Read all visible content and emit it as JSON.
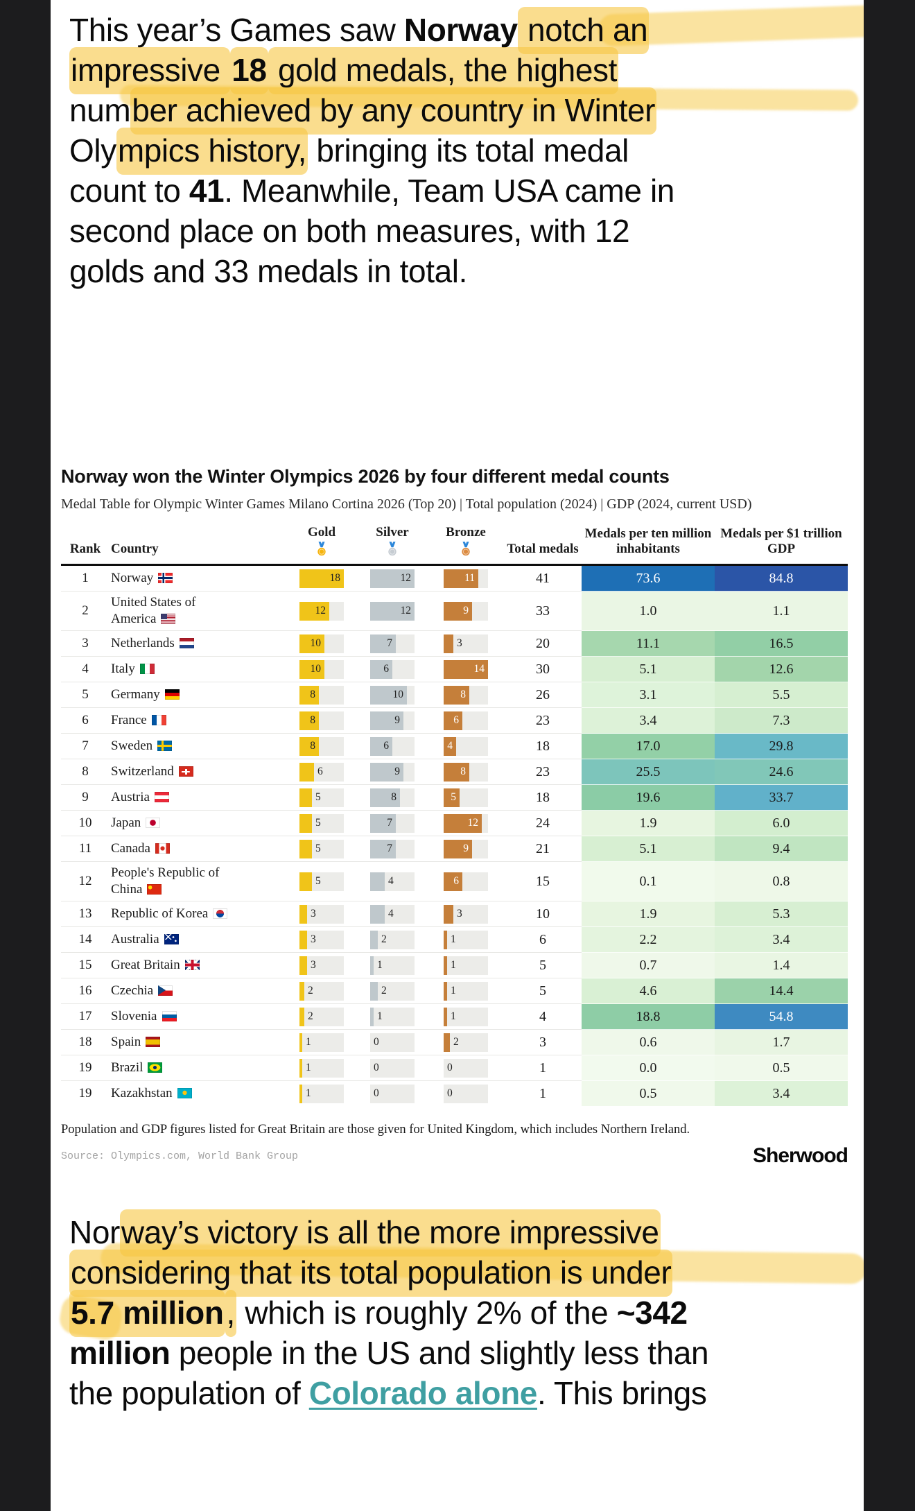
{
  "article": {
    "top_paragraph": {
      "lines": [
        [
          {
            "t": "This year’s Games saw "
          },
          {
            "t": "Norway",
            "b": true
          },
          {
            "t": " notch an",
            "h": true
          }
        ],
        [
          {
            "t": "impressive ",
            "h": true
          },
          {
            "t": "18",
            "b": true,
            "h": true
          },
          {
            "t": " gold medals, the highest",
            "h": true
          }
        ],
        [
          {
            "t": "num"
          },
          {
            "t": "ber achieved by any country in Winter",
            "h": true
          }
        ],
        [
          {
            "t": "Oly"
          },
          {
            "t": "mpics history,",
            "h": true
          },
          {
            "t": " bringing its total medal"
          }
        ],
        [
          {
            "t": "count to "
          },
          {
            "t": "41",
            "b": true
          },
          {
            "t": ". Meanwhile, Team USA came in"
          }
        ],
        [
          {
            "t": "second place on both measures, with 12"
          }
        ],
        [
          {
            "t": "golds and 33 medals in total."
          }
        ]
      ]
    },
    "bottom_paragraph": {
      "lines": [
        [
          {
            "t": "Nor"
          },
          {
            "t": "way’s victory is all the more impressive",
            "h": true
          }
        ],
        [
          {
            "t": "considering that its total population is under",
            "h": true
          }
        ],
        [
          {
            "t": "5.7 million",
            "b": true,
            "h": true
          },
          {
            "t": ",",
            "h": true
          },
          {
            "t": " which is roughly 2% of the "
          },
          {
            "t": "~342",
            "b": true
          }
        ],
        [
          {
            "t": "million",
            "b": true
          },
          {
            "t": " people in the US and slightly less than"
          }
        ],
        [
          {
            "t": "the population of "
          },
          {
            "t": "Colorado alone",
            "link": true
          },
          {
            "t": ". This brings"
          }
        ]
      ]
    },
    "highlight_color": "#f6c742",
    "link_color": "#3f9fa2"
  },
  "chart": {
    "title": "Norway won the Winter Olympics 2026 by four different medal counts",
    "subtitle": "Medal Table for Olympic Winter Games Milano Cortina 2026 (Top 20) | Total population (2024) | GDP (2024, current USD)",
    "headers": {
      "rank": "Rank",
      "country": "Country",
      "gold": "Gold",
      "silver": "Silver",
      "bronze": "Bronze",
      "total": "Total medals",
      "per_pop": "Medals per ten million inhabitants",
      "per_gdp": "Medals per $1 trillion GDP"
    },
    "medal_colors": {
      "gold": "#f6b40e",
      "silver": "#c6ccd2",
      "bronze": "#dc8a3f"
    },
    "bar_colors": {
      "gold": "#f0c419",
      "silver": "#bfc8cc",
      "bronze": "#c57f3a",
      "track": "#ecece9"
    },
    "footnote": "Population and GDP figures listed for Great Britain are those given for United Kingdom, which includes Northern Ireland.",
    "source": "Source: Olympics.com, World Bank Group",
    "logo": "Sherwood"
  },
  "chart_data": {
    "type": "table",
    "columns": [
      "Rank",
      "Country",
      "Gold",
      "Silver",
      "Bronze",
      "Total medals",
      "Medals per ten million inhabitants",
      "Medals per $1 trillion GDP"
    ],
    "maxima": {
      "gold": 18,
      "silver": 12,
      "bronze": 14
    },
    "rows": [
      {
        "rank": "1",
        "country": "Norway",
        "flag": "no",
        "gold": 18,
        "silver": 12,
        "bronze": 11,
        "total": 41,
        "per_pop": "73.6",
        "per_gdp": "84.8",
        "pop_bg": "#1e6fb5",
        "pop_fg": "#ffffff",
        "gdp_bg": "#2b55a7",
        "gdp_fg": "#ffffff"
      },
      {
        "rank": "2",
        "country": "United States of America",
        "flag": "us",
        "gold": 12,
        "silver": 12,
        "bronze": 9,
        "total": 33,
        "per_pop": "1.0",
        "per_gdp": "1.1",
        "pop_bg": "#eaf6e4",
        "gdp_bg": "#eaf6e4"
      },
      {
        "rank": "3",
        "country": "Netherlands",
        "flag": "nl",
        "gold": 10,
        "silver": 7,
        "bronze": 3,
        "total": 20,
        "per_pop": "11.1",
        "per_gdp": "16.5",
        "pop_bg": "#a6d7ae",
        "gdp_bg": "#92cfa6"
      },
      {
        "rank": "4",
        "country": "Italy",
        "flag": "it",
        "gold": 10,
        "silver": 6,
        "bronze": 14,
        "total": 30,
        "per_pop": "5.1",
        "per_gdp": "12.6",
        "pop_bg": "#d7efd2",
        "gdp_bg": "#a3d5ab"
      },
      {
        "rank": "5",
        "country": "Germany",
        "flag": "de",
        "gold": 8,
        "silver": 10,
        "bronze": 8,
        "total": 26,
        "per_pop": "3.1",
        "per_gdp": "5.5",
        "pop_bg": "#def3da",
        "gdp_bg": "#d6efd1"
      },
      {
        "rank": "6",
        "country": "France",
        "flag": "fr",
        "gold": 8,
        "silver": 9,
        "bronze": 6,
        "total": 23,
        "per_pop": "3.4",
        "per_gdp": "7.3",
        "pop_bg": "#ddf2d8",
        "gdp_bg": "#cdeaca"
      },
      {
        "rank": "7",
        "country": "Sweden",
        "flag": "se",
        "gold": 8,
        "silver": 6,
        "bronze": 4,
        "total": 18,
        "per_pop": "17.0",
        "per_gdp": "29.8",
        "pop_bg": "#93d0a7",
        "gdp_bg": "#69b9c7"
      },
      {
        "rank": "8",
        "country": "Switzerland",
        "flag": "ch",
        "gold": 6,
        "silver": 9,
        "bronze": 8,
        "total": 23,
        "per_pop": "25.5",
        "per_gdp": "24.6",
        "pop_bg": "#7dc5bb",
        "gdp_bg": "#81c7b8"
      },
      {
        "rank": "9",
        "country": "Austria",
        "flag": "at",
        "gold": 5,
        "silver": 8,
        "bronze": 5,
        "total": 18,
        "per_pop": "19.6",
        "per_gdp": "33.7",
        "pop_bg": "#8bcca6",
        "gdp_bg": "#61b1ca"
      },
      {
        "rank": "10",
        "country": "Japan",
        "flag": "jp",
        "gold": 5,
        "silver": 7,
        "bronze": 12,
        "total": 24,
        "per_pop": "1.9",
        "per_gdp": "6.0",
        "pop_bg": "#e7f5e0",
        "gdp_bg": "#d3eecf"
      },
      {
        "rank": "11",
        "country": "Canada",
        "flag": "ca",
        "gold": 5,
        "silver": 7,
        "bronze": 9,
        "total": 21,
        "per_pop": "5.1",
        "per_gdp": "9.4",
        "pop_bg": "#d7efd2",
        "gdp_bg": "#c0e5c1"
      },
      {
        "rank": "12",
        "country": "People's Republic of China",
        "flag": "cn",
        "gold": 5,
        "silver": 4,
        "bronze": 6,
        "total": 15,
        "per_pop": "0.1",
        "per_gdp": "0.8",
        "pop_bg": "#f1faec",
        "gdp_bg": "#eef8e8"
      },
      {
        "rank": "13",
        "country": "Republic of Korea",
        "flag": "kr",
        "gold": 3,
        "silver": 4,
        "bronze": 3,
        "total": 10,
        "per_pop": "1.9",
        "per_gdp": "5.3",
        "pop_bg": "#e7f5e0",
        "gdp_bg": "#d7efd2"
      },
      {
        "rank": "14",
        "country": "Australia",
        "flag": "au",
        "gold": 3,
        "silver": 2,
        "bronze": 1,
        "total": 6,
        "per_pop": "2.2",
        "per_gdp": "3.4",
        "pop_bg": "#e4f4de",
        "gdp_bg": "#ddf2d8"
      },
      {
        "rank": "15",
        "country": "Great Britain",
        "flag": "gb",
        "gold": 3,
        "silver": 1,
        "bronze": 1,
        "total": 5,
        "per_pop": "0.7",
        "per_gdp": "1.4",
        "pop_bg": "#eff8ea",
        "gdp_bg": "#e9f6e3"
      },
      {
        "rank": "16",
        "country": "Czechia",
        "flag": "cz",
        "gold": 2,
        "silver": 2,
        "bronze": 1,
        "total": 5,
        "per_pop": "4.6",
        "per_gdp": "14.4",
        "pop_bg": "#d9f0d4",
        "gdp_bg": "#9bd2aa"
      },
      {
        "rank": "17",
        "country": "Slovenia",
        "flag": "si",
        "gold": 2,
        "silver": 1,
        "bronze": 1,
        "total": 4,
        "per_pop": "18.8",
        "per_gdp": "54.8",
        "pop_bg": "#8ecda6",
        "gdp_bg": "#3e8ac1",
        "gdp_fg": "#ffffff"
      },
      {
        "rank": "18",
        "country": "Spain",
        "flag": "es",
        "gold": 1,
        "silver": 0,
        "bronze": 2,
        "total": 3,
        "per_pop": "0.6",
        "per_gdp": "1.7",
        "pop_bg": "#eff8ea",
        "gdp_bg": "#e8f5e2"
      },
      {
        "rank": "19",
        "country": "Brazil",
        "flag": "br",
        "gold": 1,
        "silver": 0,
        "bronze": 0,
        "total": 1,
        "per_pop": "0.0",
        "per_gdp": "0.5",
        "pop_bg": "#f2faee",
        "gdp_bg": "#f0f9eb"
      },
      {
        "rank": "19",
        "country": "Kazakhstan",
        "flag": "kz",
        "gold": 1,
        "silver": 0,
        "bronze": 0,
        "total": 1,
        "per_pop": "0.5",
        "per_gdp": "3.4",
        "pop_bg": "#f0f9eb",
        "gdp_bg": "#ddf2d8"
      }
    ]
  }
}
